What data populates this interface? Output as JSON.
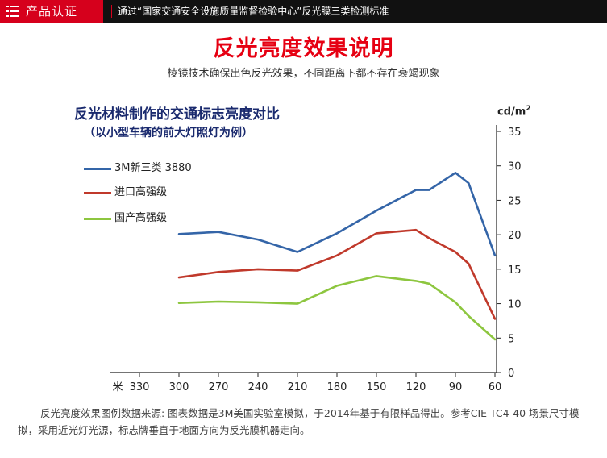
{
  "header": {
    "tag": "产品认证",
    "description": "通过“国家交通安全设施质量监督检验中心”反光膜三类检测标准"
  },
  "page": {
    "title": "反光亮度效果说明",
    "subtitle": "棱镜技术确保出色反光效果，不同距离下都不存在衰竭现象"
  },
  "chart_data": {
    "type": "line",
    "title": "反光材料制作的交通标志亮度对比",
    "subtitle": "（以小型车辆的前大灯照灯为例）",
    "xlabel": "米",
    "ylabel": "cd/m2",
    "x_ticks": [
      330,
      300,
      270,
      240,
      210,
      180,
      150,
      120,
      90,
      60
    ],
    "xlim": [
      345,
      60
    ],
    "y_ticks": [
      0,
      5,
      10,
      15,
      20,
      25,
      30,
      35
    ],
    "ylim": [
      0,
      35
    ],
    "grid": false,
    "legend_position": "top-left",
    "series": [
      {
        "name": "3M新三类 3880",
        "color": "#3465a8",
        "points": [
          [
            300,
            20.1
          ],
          [
            270,
            20.4
          ],
          [
            240,
            19.3
          ],
          [
            210,
            17.5
          ],
          [
            180,
            20.2
          ],
          [
            150,
            23.5
          ],
          [
            120,
            26.5
          ],
          [
            110,
            26.5
          ],
          [
            90,
            29
          ],
          [
            80,
            27.5
          ],
          [
            60,
            17
          ]
        ]
      },
      {
        "name": "进口高强级",
        "color": "#c0392b",
        "points": [
          [
            300,
            13.8
          ],
          [
            270,
            14.6
          ],
          [
            240,
            15.0
          ],
          [
            210,
            14.8
          ],
          [
            180,
            17.0
          ],
          [
            150,
            20.2
          ],
          [
            120,
            20.7
          ],
          [
            110,
            19.5
          ],
          [
            90,
            17.5
          ],
          [
            80,
            15.8
          ],
          [
            60,
            7.8
          ]
        ]
      },
      {
        "name": "国产高强级",
        "color": "#8dc63f",
        "points": [
          [
            300,
            10.1
          ],
          [
            270,
            10.3
          ],
          [
            240,
            10.2
          ],
          [
            210,
            10.0
          ],
          [
            180,
            12.6
          ],
          [
            150,
            14.0
          ],
          [
            120,
            13.3
          ],
          [
            110,
            12.9
          ],
          [
            90,
            10.2
          ],
          [
            80,
            8.2
          ],
          [
            60,
            4.8
          ]
        ]
      }
    ]
  },
  "footnote": "反光亮度效果图例数据来源: 图表数据是3M美国实验室模拟，于2014年基于有限样品得出。参考CIE TC4-40 场景尺寸模拟，采用近光灯光源，标志牌垂直于地面方向为反光膜机器走向。"
}
